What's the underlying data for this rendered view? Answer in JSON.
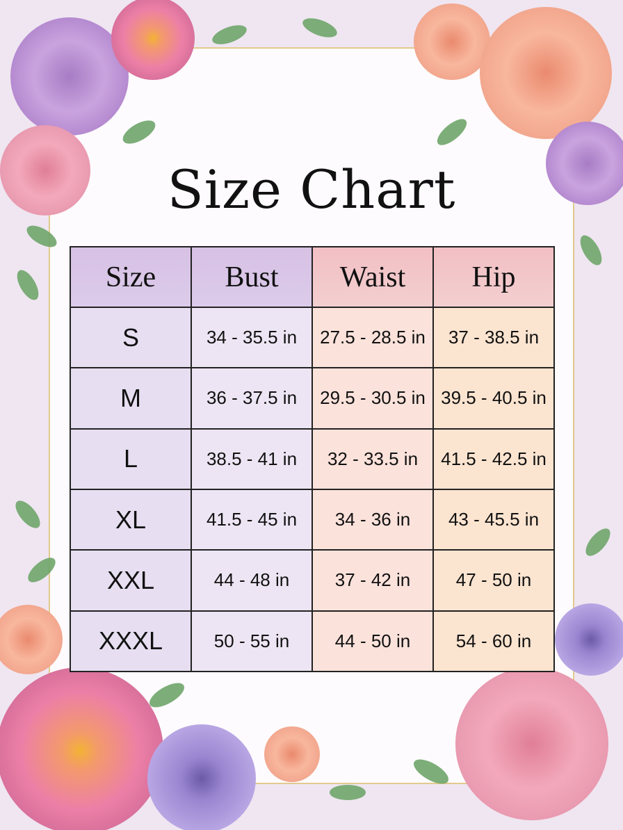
{
  "title": "Size Chart",
  "colors": {
    "header_purple": "#d7c1e4",
    "header_pink": "#f2bfc4",
    "size_col": "#e7def1",
    "bust_col": "#ede5f3",
    "waist_col": "#fbe2db",
    "hip_col": "#fbe4d0",
    "frame_gold": "#e2c98e"
  },
  "decoration": [
    "rose",
    "dahlia",
    "anemone",
    "leaves"
  ],
  "table": {
    "headers": [
      "Size",
      "Bust",
      "Waist",
      "Hip"
    ],
    "rows": [
      [
        "S",
        "34 - 35.5 in",
        "27.5 - 28.5 in",
        "37 - 38.5 in"
      ],
      [
        "M",
        "36 - 37.5 in",
        "29.5 - 30.5 in",
        "39.5 - 40.5 in"
      ],
      [
        "L",
        "38.5 - 41 in",
        "32 - 33.5 in",
        "41.5 - 42.5 in"
      ],
      [
        "XL",
        "41.5 - 45 in",
        "34 - 36 in",
        "43 - 45.5 in"
      ],
      [
        "XXL",
        "44 - 48 in",
        "37 - 42 in",
        "47 - 50 in"
      ],
      [
        "XXXL",
        "50 - 55 in",
        "44 - 50 in",
        "54 - 60 in"
      ]
    ]
  }
}
